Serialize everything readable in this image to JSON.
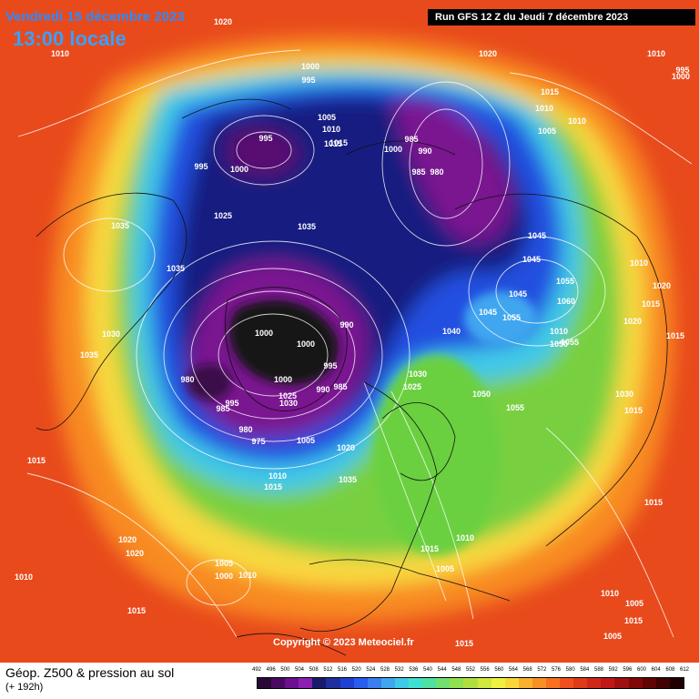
{
  "header": {
    "date_text": "Vendredi 15 décembre 2023",
    "hour_text": "13:00 locale",
    "run_text": "Run GFS 12 Z du Jeudi 7 décembre 2023"
  },
  "copyright": "Copyright © 2023 Meteociel.fr",
  "footer": {
    "title": "Géop. Z500 & pression au sol",
    "subtitle": "(+ 192h)"
  },
  "colors": {
    "ocean_warm": "#f05020",
    "red": "#e03a18",
    "orange": "#f88a20",
    "yellow": "#f8d840",
    "green": "#78d040",
    "cyan": "#40c8e8",
    "blue": "#2050e0",
    "navy": "#141f80",
    "purple": "#7a1890",
    "black": "#121212"
  },
  "scale": {
    "labels": [
      "492",
      "496",
      "500",
      "504",
      "508",
      "512",
      "516",
      "520",
      "524",
      "528",
      "532",
      "536",
      "540",
      "544",
      "548",
      "552",
      "556",
      "560",
      "564",
      "568",
      "572",
      "576",
      "580",
      "584",
      "588",
      "592",
      "596",
      "600",
      "604",
      "608",
      "612"
    ],
    "colors": [
      "#2a0838",
      "#4a0a60",
      "#6a1090",
      "#8a20b0",
      "#1a1a6a",
      "#202ea0",
      "#2040d0",
      "#2a5cf0",
      "#3a7ff0",
      "#40a6f0",
      "#40c8e8",
      "#40e0d0",
      "#50e0a0",
      "#70e070",
      "#90e050",
      "#b0e040",
      "#d0e840",
      "#f0f040",
      "#f8d838",
      "#f8b030",
      "#f89028",
      "#f87020",
      "#f05020",
      "#e03a18",
      "#d02818",
      "#c01818",
      "#a01010",
      "#800808",
      "#600404",
      "#400202",
      "#200000"
    ]
  },
  "pressure_labels": [
    {
      "t": "1020"
    },
    {
      "t": "1010"
    },
    {
      "t": "1000"
    },
    {
      "t": "995"
    },
    {
      "t": "1020"
    },
    {
      "t": "1010"
    },
    {
      "t": "995"
    },
    {
      "t": "1000"
    },
    {
      "t": "1015"
    },
    {
      "t": "1005"
    },
    {
      "t": "1010"
    },
    {
      "t": "1015"
    },
    {
      "t": "995"
    },
    {
      "t": "1000"
    },
    {
      "t": "1000"
    },
    {
      "t": "995"
    },
    {
      "t": "985"
    },
    {
      "t": "990"
    },
    {
      "t": "985"
    },
    {
      "t": "980"
    },
    {
      "t": "1015"
    },
    {
      "t": "1010"
    },
    {
      "t": "1010"
    },
    {
      "t": "1005"
    },
    {
      "t": "1025"
    },
    {
      "t": "1035"
    },
    {
      "t": "1035"
    },
    {
      "t": "1035"
    },
    {
      "t": "1045"
    },
    {
      "t": "1045"
    },
    {
      "t": "1055"
    },
    {
      "t": "1060"
    },
    {
      "t": "1045"
    },
    {
      "t": "1045"
    },
    {
      "t": "1055"
    },
    {
      "t": "1010"
    },
    {
      "t": "1020"
    },
    {
      "t": "1015"
    },
    {
      "t": "1020"
    },
    {
      "t": "1015"
    },
    {
      "t": "1010"
    },
    {
      "t": "1050"
    },
    {
      "t": "1055"
    },
    {
      "t": "1030"
    },
    {
      "t": "1035"
    },
    {
      "t": "1000"
    },
    {
      "t": "1000"
    },
    {
      "t": "990"
    },
    {
      "t": "1040"
    },
    {
      "t": "1030"
    },
    {
      "t": "1025"
    },
    {
      "t": "1050"
    },
    {
      "t": "1055"
    },
    {
      "t": "1030"
    },
    {
      "t": "1015"
    },
    {
      "t": "980"
    },
    {
      "t": "985"
    },
    {
      "t": "995"
    },
    {
      "t": "1000"
    },
    {
      "t": "1025"
    },
    {
      "t": "1030"
    },
    {
      "t": "995"
    },
    {
      "t": "990"
    },
    {
      "t": "985"
    },
    {
      "t": "980"
    },
    {
      "t": "975"
    },
    {
      "t": "1005"
    },
    {
      "t": "1020"
    },
    {
      "t": "1015"
    },
    {
      "t": "1010"
    },
    {
      "t": "1015"
    },
    {
      "t": "1035"
    },
    {
      "t": "1015"
    },
    {
      "t": "1020"
    },
    {
      "t": "1020"
    },
    {
      "t": "1010"
    },
    {
      "t": "1005"
    },
    {
      "t": "1000"
    },
    {
      "t": "1010"
    },
    {
      "t": "1015"
    },
    {
      "t": "1015"
    },
    {
      "t": "1010"
    },
    {
      "t": "1005"
    },
    {
      "t": "1010"
    },
    {
      "t": "1005"
    },
    {
      "t": "1015"
    },
    {
      "t": "1005"
    },
    {
      "t": "1015"
    }
  ]
}
